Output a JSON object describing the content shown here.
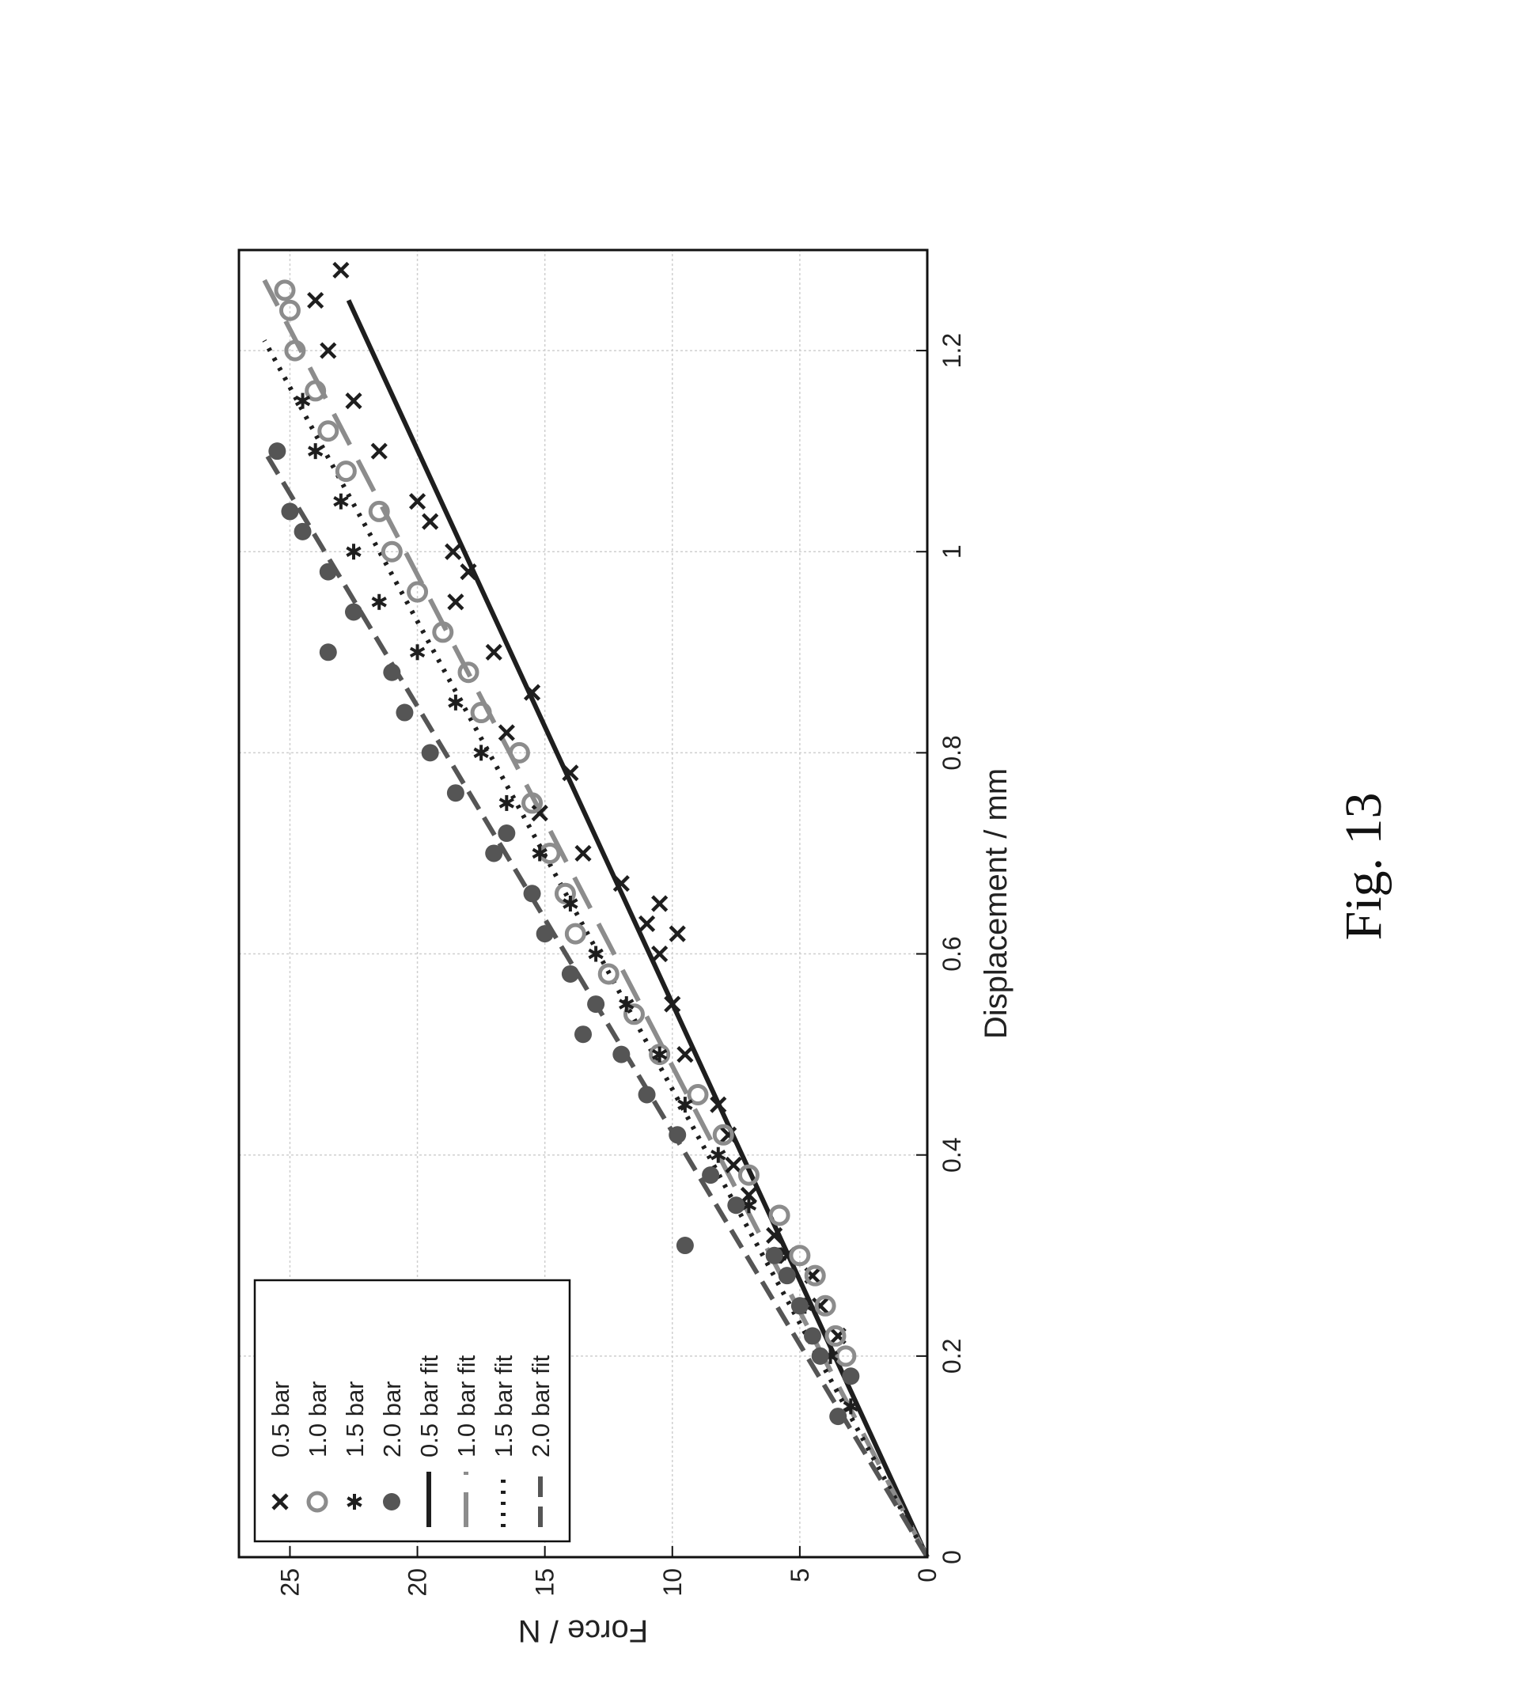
{
  "figure_caption": "Fig. 13",
  "colors": {
    "dark": "#1e1e1e",
    "gray": "#8c8c8c",
    "mid": "#555555",
    "grid": "#cfcfcf"
  },
  "chart_data": {
    "type": "scatter",
    "title": "",
    "xlabel": "Displacement / mm",
    "ylabel": "Force / N",
    "xlim": [
      0,
      1.3
    ],
    "ylim": [
      0,
      27
    ],
    "x_ticks": [
      0,
      0.2,
      0.4,
      0.6,
      0.8,
      1,
      1.2
    ],
    "x_tick_labels": [
      "0",
      "0.2",
      "0.4",
      "0.6",
      "0.8",
      "1",
      "1.2"
    ],
    "y_ticks": [
      0,
      5,
      10,
      15,
      20,
      25
    ],
    "y_tick_labels": [
      "0",
      "5",
      "10",
      "15",
      "20",
      "25"
    ],
    "grid": true,
    "legend_position": "top-left",
    "series": [
      {
        "name": "0.5 bar",
        "kind": "scatter",
        "marker": "x",
        "color": "#1e1e1e",
        "x": [
          0.22,
          0.25,
          0.28,
          0.3,
          0.32,
          0.36,
          0.39,
          0.42,
          0.45,
          0.5,
          0.55,
          0.6,
          0.62,
          0.63,
          0.65,
          0.67,
          0.7,
          0.74,
          0.78,
          0.82,
          0.86,
          0.9,
          0.95,
          0.98,
          1.0,
          1.03,
          1.05,
          1.1,
          1.15,
          1.2,
          1.25,
          1.28
        ],
        "y": [
          3.5,
          4.2,
          4.5,
          5.5,
          6.0,
          7.0,
          7.6,
          7.8,
          8.2,
          9.5,
          10.0,
          10.5,
          9.8,
          11.0,
          10.5,
          12.0,
          13.5,
          15.2,
          14.0,
          16.5,
          15.5,
          17.0,
          18.5,
          18.0,
          18.6,
          19.5,
          20.0,
          21.5,
          22.5,
          23.5,
          24.0,
          23.0
        ]
      },
      {
        "name": "1.0 bar",
        "kind": "scatter",
        "marker": "o",
        "color": "#8c8c8c",
        "x": [
          0.2,
          0.22,
          0.25,
          0.28,
          0.3,
          0.34,
          0.38,
          0.42,
          0.46,
          0.5,
          0.54,
          0.58,
          0.62,
          0.66,
          0.7,
          0.75,
          0.8,
          0.84,
          0.88,
          0.92,
          0.96,
          1.0,
          1.04,
          1.08,
          1.12,
          1.16,
          1.2,
          1.24,
          1.26
        ],
        "y": [
          3.2,
          3.6,
          4.0,
          4.4,
          5.0,
          5.8,
          7.0,
          8.0,
          9.0,
          10.5,
          11.5,
          12.5,
          13.8,
          14.2,
          14.8,
          15.5,
          16.0,
          17.5,
          18.0,
          19.0,
          20.0,
          21.0,
          21.5,
          22.8,
          23.5,
          24.0,
          24.8,
          25.0,
          25.2
        ]
      },
      {
        "name": "1.5 bar",
        "kind": "scatter",
        "marker": "*",
        "color": "#1e1e1e",
        "x": [
          0.15,
          0.2,
          0.25,
          0.3,
          0.35,
          0.4,
          0.45,
          0.5,
          0.55,
          0.6,
          0.65,
          0.7,
          0.75,
          0.8,
          0.85,
          0.9,
          0.95,
          1.0,
          1.05,
          1.1,
          1.15
        ],
        "y": [
          3.0,
          3.8,
          4.8,
          5.8,
          7.0,
          8.2,
          9.5,
          10.5,
          11.8,
          13.0,
          14.0,
          15.2,
          16.5,
          17.5,
          18.5,
          20.0,
          21.5,
          22.5,
          23.0,
          24.0,
          24.5
        ]
      },
      {
        "name": "2.0 bar",
        "kind": "scatter",
        "marker": "dot",
        "color": "#555555",
        "x": [
          0.14,
          0.18,
          0.2,
          0.22,
          0.25,
          0.28,
          0.3,
          0.31,
          0.35,
          0.38,
          0.42,
          0.46,
          0.5,
          0.52,
          0.55,
          0.58,
          0.62,
          0.66,
          0.7,
          0.72,
          0.76,
          0.8,
          0.84,
          0.88,
          0.9,
          0.94,
          0.98,
          1.02,
          1.04,
          1.1
        ],
        "y": [
          3.5,
          3.0,
          4.2,
          4.5,
          5.0,
          5.5,
          6.0,
          9.5,
          7.5,
          8.5,
          9.8,
          11.0,
          12.0,
          13.5,
          13.0,
          14.0,
          15.0,
          15.5,
          17.0,
          16.5,
          18.5,
          19.5,
          20.5,
          21.0,
          23.5,
          22.5,
          23.5,
          24.5,
          25.0,
          25.5
        ]
      },
      {
        "name": "0.5 bar fit",
        "kind": "line",
        "dash": "solid",
        "color": "#1e1e1e",
        "x": [
          0,
          1.25
        ],
        "y": [
          0,
          22.7
        ]
      },
      {
        "name": "1.0 bar fit",
        "kind": "line",
        "dash": "long-dash",
        "color": "#8c8c8c",
        "x": [
          0,
          1.27
        ],
        "y": [
          0,
          26.0
        ]
      },
      {
        "name": "1.5 bar fit",
        "kind": "line",
        "dash": "dotted",
        "color": "#1e1e1e",
        "x": [
          0,
          1.21
        ],
        "y": [
          0,
          26.0
        ]
      },
      {
        "name": "2.0 bar fit",
        "kind": "line",
        "dash": "dashed",
        "color": "#555555",
        "x": [
          0,
          1.1
        ],
        "y": [
          0,
          26.0
        ]
      }
    ]
  }
}
